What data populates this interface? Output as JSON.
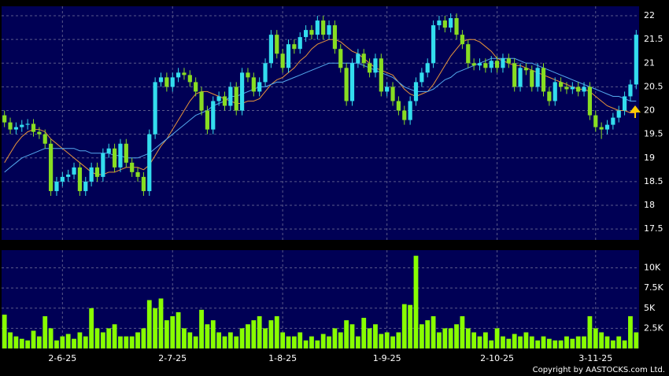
{
  "chart_data": [
    {
      "type": "candlestick",
      "categories": [
        null,
        null,
        null,
        null,
        null,
        null,
        null,
        null,
        null,
        null,
        "2-6-25",
        null,
        null,
        null,
        null,
        null,
        null,
        null,
        null,
        null,
        null,
        null,
        null,
        null,
        null,
        null,
        null,
        null,
        null,
        "2-7-25",
        null,
        null,
        null,
        null,
        null,
        null,
        null,
        null,
        null,
        null,
        null,
        null,
        null,
        null,
        null,
        null,
        null,
        null,
        "1-8-25",
        null,
        null,
        null,
        null,
        null,
        null,
        null,
        null,
        null,
        null,
        null,
        null,
        null,
        null,
        null,
        null,
        null,
        "1-9-25",
        null,
        null,
        null,
        null,
        null,
        null,
        null,
        null,
        null,
        null,
        null,
        null,
        null,
        null,
        null,
        null,
        null,
        null,
        "2-10-25",
        null,
        null,
        null,
        null,
        null,
        null,
        null,
        null,
        null,
        null,
        null,
        null,
        null,
        null,
        null,
        null,
        "3-11-25",
        null,
        null,
        null,
        null,
        null,
        null,
        null
      ],
      "open": [
        19.9,
        19.75,
        19.6,
        19.65,
        19.7,
        19.72,
        19.55,
        19.5,
        19.3,
        18.3,
        18.5,
        18.6,
        18.65,
        18.8,
        18.3,
        18.5,
        18.8,
        18.6,
        19.1,
        19.2,
        18.8,
        19.3,
        18.9,
        18.7,
        18.6,
        18.3,
        19.5,
        20.6,
        20.7,
        20.5,
        20.7,
        20.8,
        20.75,
        20.6,
        20.4,
        20.0,
        19.6,
        20.2,
        20.3,
        20.1,
        20.5,
        20.0,
        20.8,
        20.7,
        20.4,
        20.6,
        21.0,
        21.6,
        21.2,
        20.9,
        21.4,
        21.3,
        21.55,
        21.7,
        21.6,
        21.9,
        21.6,
        21.8,
        21.3,
        20.9,
        20.2,
        21.0,
        21.2,
        21.0,
        20.8,
        21.1,
        20.4,
        20.5,
        20.2,
        20.0,
        19.8,
        20.2,
        20.6,
        20.8,
        21.0,
        21.8,
        21.9,
        21.75,
        21.95,
        21.6,
        21.4,
        21.0,
        20.95,
        21.0,
        20.9,
        21.05,
        20.9,
        21.1,
        21.0,
        20.5,
        20.9,
        20.85,
        20.5,
        20.9,
        20.4,
        20.2,
        20.6,
        20.5,
        20.45,
        20.5,
        20.4,
        20.5,
        19.9,
        19.65,
        19.6,
        19.7,
        19.85,
        20.0,
        20.3,
        20.55
      ],
      "high": [
        20.0,
        19.85,
        19.75,
        19.8,
        19.82,
        19.82,
        19.65,
        19.6,
        19.4,
        18.6,
        18.7,
        18.75,
        18.9,
        18.9,
        18.6,
        18.9,
        18.9,
        19.2,
        19.3,
        19.3,
        19.4,
        19.4,
        19.0,
        18.8,
        18.7,
        19.6,
        20.7,
        20.8,
        20.8,
        20.8,
        20.9,
        20.9,
        20.85,
        20.7,
        20.5,
        20.1,
        20.3,
        20.4,
        20.4,
        20.6,
        20.6,
        20.9,
        20.9,
        20.8,
        20.7,
        21.1,
        21.7,
        21.7,
        21.3,
        21.5,
        21.5,
        21.65,
        21.8,
        21.8,
        22.0,
        22.0,
        21.9,
        21.9,
        21.4,
        21.0,
        21.1,
        21.3,
        21.3,
        21.1,
        21.2,
        21.2,
        20.6,
        20.6,
        20.3,
        20.1,
        20.3,
        20.7,
        20.9,
        21.1,
        21.9,
        22.0,
        22.0,
        22.05,
        22.05,
        21.7,
        21.5,
        21.1,
        21.1,
        21.1,
        21.15,
        21.15,
        21.2,
        21.2,
        21.1,
        21.0,
        21.0,
        20.95,
        21.0,
        21.0,
        20.5,
        20.7,
        20.7,
        20.6,
        20.6,
        20.6,
        20.6,
        20.6,
        20.0,
        19.75,
        19.8,
        19.95,
        20.1,
        20.4,
        20.65,
        21.7
      ],
      "low": [
        19.65,
        19.5,
        19.5,
        19.55,
        19.6,
        19.45,
        19.4,
        19.2,
        18.2,
        18.2,
        18.4,
        18.5,
        18.55,
        18.2,
        18.2,
        18.4,
        18.5,
        18.5,
        19.0,
        18.7,
        18.7,
        18.8,
        18.6,
        18.5,
        18.2,
        18.2,
        19.4,
        20.5,
        20.4,
        20.4,
        20.6,
        20.65,
        20.5,
        20.3,
        19.9,
        19.5,
        19.5,
        20.1,
        20.0,
        20.0,
        19.9,
        19.9,
        20.6,
        20.3,
        20.3,
        20.5,
        20.9,
        21.1,
        20.8,
        20.8,
        21.2,
        21.2,
        21.45,
        21.5,
        21.5,
        21.5,
        21.5,
        21.2,
        20.8,
        20.1,
        20.1,
        20.9,
        20.9,
        20.7,
        20.7,
        20.3,
        20.3,
        20.1,
        19.9,
        19.7,
        19.7,
        20.1,
        20.5,
        20.7,
        20.9,
        21.7,
        21.65,
        21.65,
        21.5,
        21.3,
        20.9,
        20.85,
        20.85,
        20.8,
        20.8,
        20.8,
        20.8,
        20.9,
        20.4,
        20.4,
        20.75,
        20.4,
        20.4,
        20.3,
        20.1,
        20.1,
        20.4,
        20.35,
        20.35,
        20.3,
        20.3,
        19.8,
        19.55,
        19.4,
        19.5,
        19.6,
        19.75,
        19.9,
        20.2,
        20.45
      ],
      "close": [
        19.75,
        19.6,
        19.65,
        19.7,
        19.72,
        19.55,
        19.5,
        19.3,
        18.3,
        18.5,
        18.6,
        18.65,
        18.8,
        18.3,
        18.5,
        18.8,
        18.6,
        19.1,
        19.2,
        18.8,
        19.3,
        18.9,
        18.7,
        18.6,
        18.3,
        19.5,
        20.6,
        20.7,
        20.5,
        20.7,
        20.8,
        20.75,
        20.6,
        20.4,
        20.0,
        19.6,
        20.2,
        20.3,
        20.1,
        20.5,
        20.0,
        20.8,
        20.7,
        20.4,
        20.6,
        21.0,
        21.6,
        21.2,
        20.9,
        21.4,
        21.3,
        21.55,
        21.7,
        21.6,
        21.9,
        21.6,
        21.8,
        21.3,
        20.9,
        20.2,
        21.0,
        21.2,
        21.0,
        20.8,
        21.1,
        20.4,
        20.5,
        20.2,
        20.0,
        19.8,
        20.2,
        20.6,
        20.8,
        21.0,
        21.8,
        21.9,
        21.75,
        21.95,
        21.6,
        21.4,
        21.0,
        20.95,
        21.0,
        20.9,
        21.05,
        20.9,
        21.1,
        21.0,
        20.5,
        20.9,
        20.85,
        20.5,
        20.9,
        20.4,
        20.2,
        20.6,
        20.5,
        20.45,
        20.5,
        20.4,
        20.5,
        19.9,
        19.65,
        19.6,
        19.7,
        19.85,
        20.0,
        20.3,
        20.55,
        21.6
      ],
      "up_color": "#33ddee",
      "down_color": "#88dd22",
      "series": [
        {
          "color": "#e8943a",
          "values": [
            18.9,
            19.1,
            19.3,
            19.45,
            19.55,
            19.6,
            19.6,
            19.55,
            19.4,
            19.3,
            19.2,
            19.1,
            19.0,
            18.9,
            18.8,
            18.7,
            18.65,
            18.65,
            18.7,
            18.7,
            18.75,
            18.8,
            18.8,
            18.8,
            18.75,
            18.85,
            19.05,
            19.25,
            19.4,
            19.6,
            19.8,
            20.0,
            20.2,
            20.35,
            20.4,
            20.4,
            20.35,
            20.3,
            20.25,
            20.2,
            20.15,
            20.15,
            20.2,
            20.2,
            20.25,
            20.4,
            20.55,
            20.65,
            20.7,
            20.8,
            20.9,
            21.05,
            21.15,
            21.3,
            21.4,
            21.45,
            21.5,
            21.5,
            21.45,
            21.35,
            21.25,
            21.2,
            21.1,
            21.0,
            20.9,
            20.85,
            20.8,
            20.75,
            20.6,
            20.45,
            20.35,
            20.3,
            20.35,
            20.4,
            20.55,
            20.75,
            20.95,
            21.15,
            21.3,
            21.45,
            21.5,
            21.5,
            21.45,
            21.35,
            21.25,
            21.1,
            21.05,
            21.0,
            20.95,
            20.95,
            20.9,
            20.85,
            20.8,
            20.75,
            20.7,
            20.65,
            20.6,
            20.55,
            20.5,
            20.45,
            20.45,
            20.4,
            20.3,
            20.2,
            20.1,
            20.05,
            20.0,
            20.0,
            19.95,
            19.95
          ]
        },
        {
          "color": "#55aaee",
          "values": [
            18.7,
            18.8,
            18.9,
            19.0,
            19.05,
            19.1,
            19.15,
            19.2,
            19.2,
            19.2,
            19.2,
            19.2,
            19.2,
            19.15,
            19.15,
            19.1,
            19.1,
            19.1,
            19.1,
            19.05,
            19.05,
            19.0,
            19.0,
            19.0,
            19.05,
            19.1,
            19.2,
            19.3,
            19.4,
            19.5,
            19.6,
            19.7,
            19.8,
            19.9,
            19.95,
            20.0,
            20.1,
            20.15,
            20.2,
            20.3,
            20.3,
            20.35,
            20.4,
            20.45,
            20.5,
            20.5,
            20.55,
            20.6,
            20.6,
            20.65,
            20.7,
            20.75,
            20.8,
            20.85,
            20.9,
            20.95,
            21.0,
            21.0,
            21.0,
            21.0,
            21.0,
            21.0,
            20.95,
            20.9,
            20.85,
            20.8,
            20.75,
            20.7,
            20.6,
            20.5,
            20.45,
            20.4,
            20.4,
            20.4,
            20.45,
            20.55,
            20.65,
            20.7,
            20.8,
            20.85,
            20.9,
            20.95,
            21.0,
            21.05,
            21.1,
            21.1,
            21.1,
            21.1,
            21.1,
            21.05,
            21.0,
            21.0,
            20.95,
            20.9,
            20.85,
            20.8,
            20.75,
            20.7,
            20.65,
            20.6,
            20.55,
            20.5,
            20.45,
            20.4,
            20.35,
            20.3,
            20.3,
            20.25,
            20.2,
            20.2
          ]
        }
      ],
      "ylim": [
        17.27,
        22.2
      ],
      "yticks": [
        17.5,
        18,
        18.5,
        19,
        19.5,
        20,
        20.5,
        21,
        21.5,
        22
      ],
      "grid": true
    },
    {
      "type": "bar",
      "color": "#88ff00",
      "values": [
        4200,
        2000,
        1500,
        1200,
        1000,
        2200,
        1500,
        4000,
        2500,
        1000,
        1500,
        1800,
        1200,
        2000,
        1500,
        5000,
        2500,
        2000,
        2500,
        3000,
        1500,
        1500,
        1500,
        2000,
        2500,
        6000,
        5000,
        6200,
        3500,
        4000,
        4500,
        2500,
        2000,
        1500,
        4800,
        3000,
        3500,
        2000,
        1500,
        2000,
        1500,
        2500,
        3000,
        3500,
        4000,
        2500,
        3500,
        4000,
        2000,
        1500,
        1500,
        2000,
        1000,
        1500,
        1000,
        1800,
        1500,
        2500,
        2000,
        3500,
        3000,
        1500,
        3800,
        2500,
        3000,
        1800,
        2000,
        1500,
        2000,
        5500,
        5400,
        11500,
        3000,
        3500,
        4000,
        2000,
        2500,
        2500,
        3000,
        4000,
        2500,
        2000,
        1500,
        2000,
        1000,
        2500,
        1500,
        1200,
        1800,
        1500,
        2000,
        1500,
        1000,
        1500,
        1200,
        1000,
        1000,
        1500,
        1200,
        1500,
        1500,
        4000,
        2500,
        2000,
        1500,
        1000,
        1500,
        1000,
        4000,
        2000
      ],
      "ylim": [
        0,
        12200
      ],
      "yticks": [
        {
          "value": 2500,
          "label": "2.5K"
        },
        {
          "value": 5000,
          "label": "5K"
        },
        {
          "value": 7500,
          "label": "7.5K"
        },
        {
          "value": 10000,
          "label": "10K"
        }
      ],
      "grid": true
    }
  ],
  "copyright": "Copyright by AASTOCKS.com Ltd."
}
